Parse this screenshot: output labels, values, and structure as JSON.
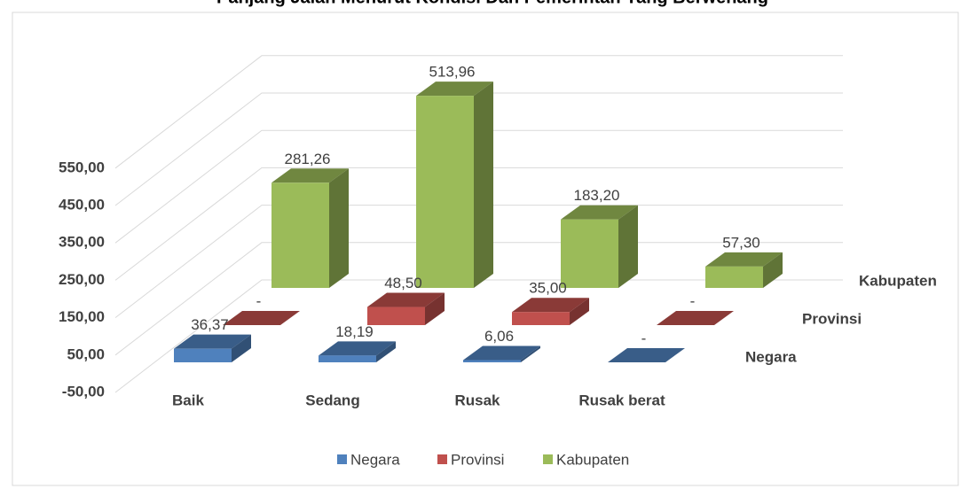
{
  "chart_data": {
    "type": "bar3d",
    "title": "Panjang Jalan Menurut Kondisi Dan Pemerintah Yang Berwenang",
    "categories": [
      "Baik",
      "Sedang",
      "Rusak",
      "Rusak berat"
    ],
    "series": [
      {
        "name": "Negara",
        "color": "#4f81bd",
        "values": [
          36.37,
          18.19,
          6.06,
          0
        ],
        "value_labels": [
          "36,37",
          "18,19",
          "6,06",
          "-"
        ]
      },
      {
        "name": "Provinsi",
        "color": "#c0504d",
        "values": [
          0,
          48.5,
          35,
          0
        ],
        "value_labels": [
          "-",
          "48,50",
          "35,00",
          "-"
        ]
      },
      {
        "name": "Kabupaten",
        "color": "#9bbb59",
        "values": [
          281.26,
          513.96,
          183.2,
          57.3
        ],
        "value_labels": [
          "281,26",
          "513,96",
          "183,20",
          "57,30"
        ]
      }
    ],
    "ylim": [
      -50,
      550
    ],
    "yticks": [
      {
        "value": -50,
        "label": "-50,00"
      },
      {
        "value": 50,
        "label": "50,00"
      },
      {
        "value": 150,
        "label": "150,00"
      },
      {
        "value": 250,
        "label": "250,00"
      },
      {
        "value": 350,
        "label": "350,00"
      },
      {
        "value": 450,
        "label": "450,00"
      },
      {
        "value": 550,
        "label": "550,00"
      }
    ],
    "grid": true,
    "legend": "bottom"
  }
}
